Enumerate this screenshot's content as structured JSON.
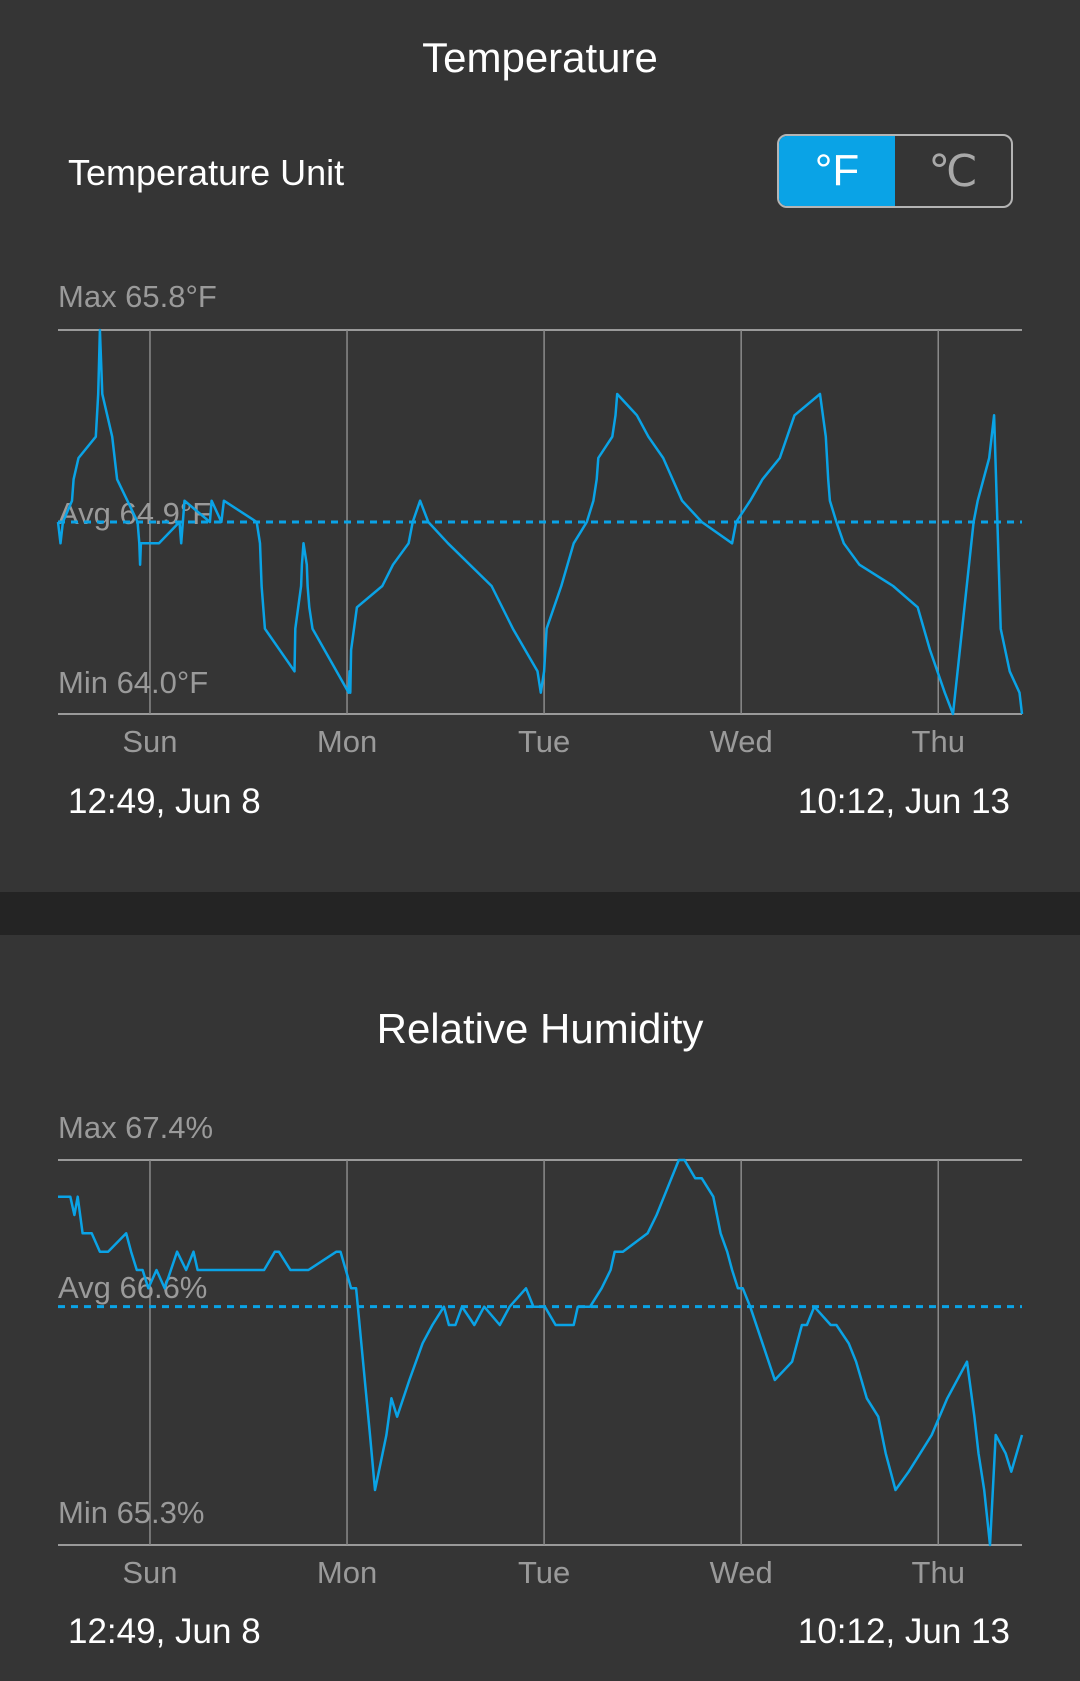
{
  "temperature": {
    "title": "Temperature",
    "unit_label": "Temperature Unit",
    "unit_options": [
      "°F",
      "℃"
    ],
    "selected_unit": "°F",
    "accent_color": "#0aa3e6",
    "start_label": "12:49,  Jun 8",
    "end_label": "10:12,  Jun 13",
    "chart_data": {
      "type": "line",
      "max_label": "Max 65.8°F",
      "avg_label": "Avg 64.9°F",
      "min_label": "Min 64.0°F",
      "max": 65.8,
      "avg": 64.9,
      "min": 64.0,
      "ylim": [
        64.0,
        65.8
      ],
      "x_tick_labels": [
        "Sun",
        "Mon",
        "Tue",
        "Wed",
        "Thu"
      ],
      "x_unit": "hours since 12:49 Jun 8",
      "x_ticks": [
        11.2,
        35.2,
        59.2,
        83.2,
        107.2
      ],
      "xlim": [
        0,
        117.4
      ],
      "x": [
        0,
        0.3,
        0.6,
        1.7,
        1.9,
        2.5,
        4.6,
        4.9,
        5.1,
        5.4,
        6.6,
        7.2,
        9.7,
        9.9,
        10.0,
        10.1,
        12.3,
        14.8,
        15.0,
        15.4,
        18.5,
        18.7,
        19.9,
        20.2,
        24.2,
        24.6,
        24.7,
        24.8,
        25.2,
        28.8,
        28.9,
        29.6,
        29.7,
        29.9,
        30.3,
        30.4,
        30.6,
        31.0,
        35.4,
        35.5,
        35.6,
        35.7,
        36.4,
        39.5,
        40.8,
        42.7,
        43.2,
        44.1,
        45.1,
        47.5,
        52.8,
        55.4,
        58.4,
        58.8,
        59.2,
        59.5,
        61.3,
        62.8,
        64.4,
        65.2,
        65.6,
        65.8,
        67.5,
        67.9,
        68.1,
        70.5,
        71.9,
        73.7,
        76.0,
        78.4,
        82.1,
        82.6,
        84.3,
        85.8,
        87.9,
        89.7,
        92.8,
        93.5,
        93.8,
        94.0,
        94.8,
        95.7,
        97.6,
        101.7,
        104.7,
        106.2,
        108.0,
        109.0,
        111.5,
        112.0,
        113.4,
        114.0,
        114.8,
        115.9,
        117.1,
        117.4
      ],
      "y": [
        64.9,
        64.8,
        64.9,
        65.0,
        65.1,
        65.2,
        65.3,
        65.5,
        65.8,
        65.5,
        65.3,
        65.1,
        64.9,
        64.8,
        64.7,
        64.8,
        64.8,
        64.9,
        64.8,
        65.0,
        64.9,
        65.0,
        64.9,
        65.0,
        64.9,
        64.8,
        64.7,
        64.6,
        64.4,
        64.2,
        64.4,
        64.6,
        64.7,
        64.8,
        64.7,
        64.6,
        64.5,
        64.4,
        64.1,
        64.2,
        64.1,
        64.3,
        64.5,
        64.6,
        64.7,
        64.8,
        64.9,
        65.0,
        64.9,
        64.8,
        64.6,
        64.4,
        64.2,
        64.1,
        64.2,
        64.4,
        64.6,
        64.8,
        64.9,
        65.0,
        65.1,
        65.2,
        65.3,
        65.4,
        65.5,
        65.4,
        65.3,
        65.2,
        65.0,
        64.9,
        64.8,
        64.9,
        65.0,
        65.1,
        65.2,
        65.4,
        65.5,
        65.3,
        65.1,
        65.0,
        64.9,
        64.8,
        64.7,
        64.6,
        64.5,
        64.3,
        64.1,
        64.0,
        64.9,
        65.0,
        65.2,
        65.4,
        64.4,
        64.2,
        64.1,
        64.0
      ]
    }
  },
  "humidity": {
    "title": "Relative Humidity",
    "start_label": "12:49,  Jun 8",
    "end_label": "10:12,  Jun 13",
    "chart_data": {
      "type": "line",
      "max_label": "Max 67.4%",
      "avg_label": "Avg 66.6%",
      "min_label": "Min 65.3%",
      "max": 67.4,
      "avg": 66.6,
      "min": 65.3,
      "ylim": [
        65.3,
        67.4
      ],
      "x_tick_labels": [
        "Sun",
        "Mon",
        "Tue",
        "Wed",
        "Thu"
      ],
      "x_unit": "hours since 12:49 Jun 8",
      "x_ticks": [
        11.2,
        35.2,
        59.2,
        83.2,
        107.2
      ],
      "xlim": [
        0,
        117.4
      ],
      "x": [
        0,
        1.5,
        2.0,
        2.4,
        3.0,
        4.1,
        5.1,
        6.1,
        8.3,
        8.9,
        9.6,
        10.3,
        11.0,
        12.0,
        13.0,
        14.5,
        15.6,
        16.5,
        17.0,
        18.4,
        20.0,
        25.1,
        26.4,
        26.9,
        28.3,
        30.5,
        33.9,
        34.4,
        35.7,
        36.3,
        38.0,
        38.6,
        40.0,
        40.6,
        41.3,
        42.8,
        44.4,
        45.6,
        47.0,
        47.6,
        48.4,
        49.2,
        50.7,
        51.9,
        53.8,
        55.0,
        57.0,
        57.9,
        59.3,
        60.6,
        62.8,
        63.3,
        64.3,
        64.8,
        66.2,
        67.3,
        67.8,
        68.8,
        71.8,
        72.9,
        73.8,
        75.6,
        76.3,
        77.6,
        78.4,
        79.8,
        80.7,
        81.5,
        82.1,
        82.8,
        83.4,
        84.3,
        85.8,
        87.3,
        89.4,
        90.0,
        90.6,
        91.2,
        92.1,
        94.1,
        94.8,
        96.3,
        97.2,
        98.5,
        99.9,
        100.8,
        102.0,
        103.6,
        106.4,
        108.3,
        110.7,
        111.6,
        112.1,
        112.8,
        113.5,
        114.2,
        115.4,
        116.1,
        117.4
      ],
      "y": [
        67.2,
        67.2,
        67.1,
        67.2,
        67.0,
        67.0,
        66.9,
        66.9,
        67.0,
        66.9,
        66.8,
        66.8,
        66.7,
        66.8,
        66.7,
        66.9,
        66.8,
        66.9,
        66.8,
        66.8,
        66.8,
        66.8,
        66.9,
        66.9,
        66.8,
        66.8,
        66.9,
        66.9,
        66.7,
        66.7,
        65.9,
        65.6,
        65.9,
        66.1,
        66.0,
        66.2,
        66.4,
        66.5,
        66.6,
        66.5,
        66.5,
        66.6,
        66.5,
        66.6,
        66.5,
        66.6,
        66.7,
        66.6,
        66.6,
        66.5,
        66.5,
        66.6,
        66.6,
        66.6,
        66.7,
        66.8,
        66.9,
        66.9,
        67.0,
        67.1,
        67.2,
        67.4,
        67.4,
        67.3,
        67.3,
        67.2,
        67.0,
        66.9,
        66.8,
        66.7,
        66.7,
        66.6,
        66.4,
        66.2,
        66.3,
        66.4,
        66.5,
        66.5,
        66.6,
        66.5,
        66.5,
        66.4,
        66.3,
        66.1,
        66.0,
        65.8,
        65.6,
        65.7,
        65.9,
        66.1,
        66.3,
        66.0,
        65.8,
        65.6,
        65.3,
        65.9,
        65.8,
        65.7,
        65.9
      ]
    }
  }
}
